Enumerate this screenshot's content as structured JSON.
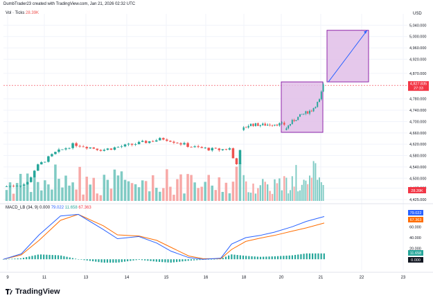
{
  "header": {
    "attribution": "DumbTrader23 created with TradingView.com, Jan 21, 2026 02:32 UTC",
    "vol_label": "Vol · Ticks",
    "vol_value": "28.39K",
    "currency": "USD"
  },
  "macd_label": {
    "name": "MACD_LB (34, 9)",
    "v0": "0.000",
    "v1": "79.022",
    "v2": "11.658",
    "v3": "67.363"
  },
  "footer": {
    "brand": "TradingView"
  },
  "colors": {
    "up": "#26a69a",
    "down": "#ef5350",
    "macd": "#2962ff",
    "signal": "#ff6d00",
    "hist": "#26a69a",
    "box_fill": "#e1bee7",
    "box_border": "#8e24aa",
    "price_line": "#f23645",
    "grid": "#f0f3fa",
    "text": "#131722",
    "muted": "#787b86"
  },
  "chart_data": {
    "type": "candlestick",
    "price_axis": {
      "ticks": [
        "5,040.000",
        "5,000.000",
        "4,960.000",
        "4,920.000",
        "4,870.000",
        "4,780.000",
        "4,740.000",
        "4,700.000",
        "4,660.000",
        "4,620.000",
        "4,580.000",
        "4,540.000",
        "4,500.000",
        "4,465.000",
        "4,425.000"
      ],
      "tick_values": [
        5040,
        5000,
        4960,
        4920,
        4870,
        4780,
        4740,
        4700,
        4660,
        4620,
        4580,
        4540,
        4500,
        4465,
        4425
      ],
      "ylim": [
        4420,
        5080
      ],
      "last_price": "4,827.835",
      "last_price_value": 4827.835,
      "countdown": "27:33",
      "last_volume": "28.39K"
    },
    "time_axis": {
      "labels": [
        "9",
        "11",
        "13",
        "14",
        "15",
        "16",
        "18",
        "20",
        "21",
        "22",
        "23"
      ]
    },
    "candle_segments": [
      {
        "name": "jan9-16",
        "count": 68,
        "start_price": 4470,
        "path": [
          [
            0,
            4470
          ],
          [
            0.1,
            4480
          ],
          [
            0.14,
            4540
          ],
          [
            0.22,
            4590
          ],
          [
            0.3,
            4620
          ],
          [
            0.42,
            4600
          ],
          [
            0.55,
            4620
          ],
          [
            0.68,
            4640
          ],
          [
            0.8,
            4610
          ],
          [
            0.9,
            4600
          ],
          [
            0.96,
            4605
          ],
          [
            0.98,
            4540
          ],
          [
            1,
            4595
          ]
        ]
      },
      {
        "name": "jan18-19",
        "count": 18,
        "start_price": 4670,
        "path": [
          [
            0,
            4670
          ],
          [
            0.2,
            4690
          ],
          [
            0.5,
            4688
          ],
          [
            0.8,
            4692
          ],
          [
            1,
            4690
          ]
        ]
      },
      {
        "name": "jan20-21",
        "count": 20,
        "start_price": 4670,
        "path": [
          [
            0,
            4670
          ],
          [
            0.2,
            4700
          ],
          [
            0.45,
            4725
          ],
          [
            0.7,
            4740
          ],
          [
            0.9,
            4775
          ],
          [
            1,
            4828
          ]
        ]
      }
    ],
    "projection": {
      "boxes": [
        {
          "from": "20",
          "to": "21",
          "price_low": 4662,
          "price_high": 4840
        },
        {
          "from": "21",
          "to": "22",
          "price_low": 4840,
          "price_high": 5022
        }
      ],
      "arrow": {
        "from_price": 4840,
        "to_price": 5022
      }
    },
    "volume": {
      "label": "Vol · Ticks",
      "last": "28.39K"
    },
    "macd": {
      "params": "MACD_LB (34, 9)",
      "values": {
        "macd": 79.022,
        "signal": 67.363,
        "histogram": 11.658,
        "zero": 0.0
      },
      "axis_ticks": [
        "60.000",
        "40.000",
        "20.000"
      ],
      "axis_tick_values": [
        60,
        40,
        20
      ],
      "ylim": [
        -10,
        95
      ],
      "macd_path": [
        [
          0,
          0
        ],
        [
          0.05,
          10
        ],
        [
          0.1,
          45
        ],
        [
          0.16,
          80
        ],
        [
          0.21,
          83
        ],
        [
          0.28,
          55
        ],
        [
          0.32,
          38
        ],
        [
          0.38,
          42
        ],
        [
          0.43,
          30
        ],
        [
          0.47,
          15
        ],
        [
          0.52,
          3
        ],
        [
          0.56,
          0
        ],
        [
          0.61,
          2
        ],
        [
          0.64,
          28
        ],
        [
          0.68,
          40
        ],
        [
          0.72,
          44
        ],
        [
          0.76,
          50
        ],
        [
          0.81,
          60
        ],
        [
          0.85,
          70
        ],
        [
          0.9,
          79
        ]
      ],
      "signal_path": [
        [
          0,
          0
        ],
        [
          0.05,
          8
        ],
        [
          0.1,
          35
        ],
        [
          0.16,
          72
        ],
        [
          0.21,
          83
        ],
        [
          0.28,
          62
        ],
        [
          0.32,
          45
        ],
        [
          0.38,
          43
        ],
        [
          0.43,
          35
        ],
        [
          0.47,
          22
        ],
        [
          0.52,
          6
        ],
        [
          0.56,
          1
        ],
        [
          0.61,
          1
        ],
        [
          0.64,
          18
        ],
        [
          0.68,
          33
        ],
        [
          0.72,
          39
        ],
        [
          0.76,
          44
        ],
        [
          0.81,
          52
        ],
        [
          0.85,
          58
        ],
        [
          0.9,
          67
        ]
      ]
    }
  }
}
